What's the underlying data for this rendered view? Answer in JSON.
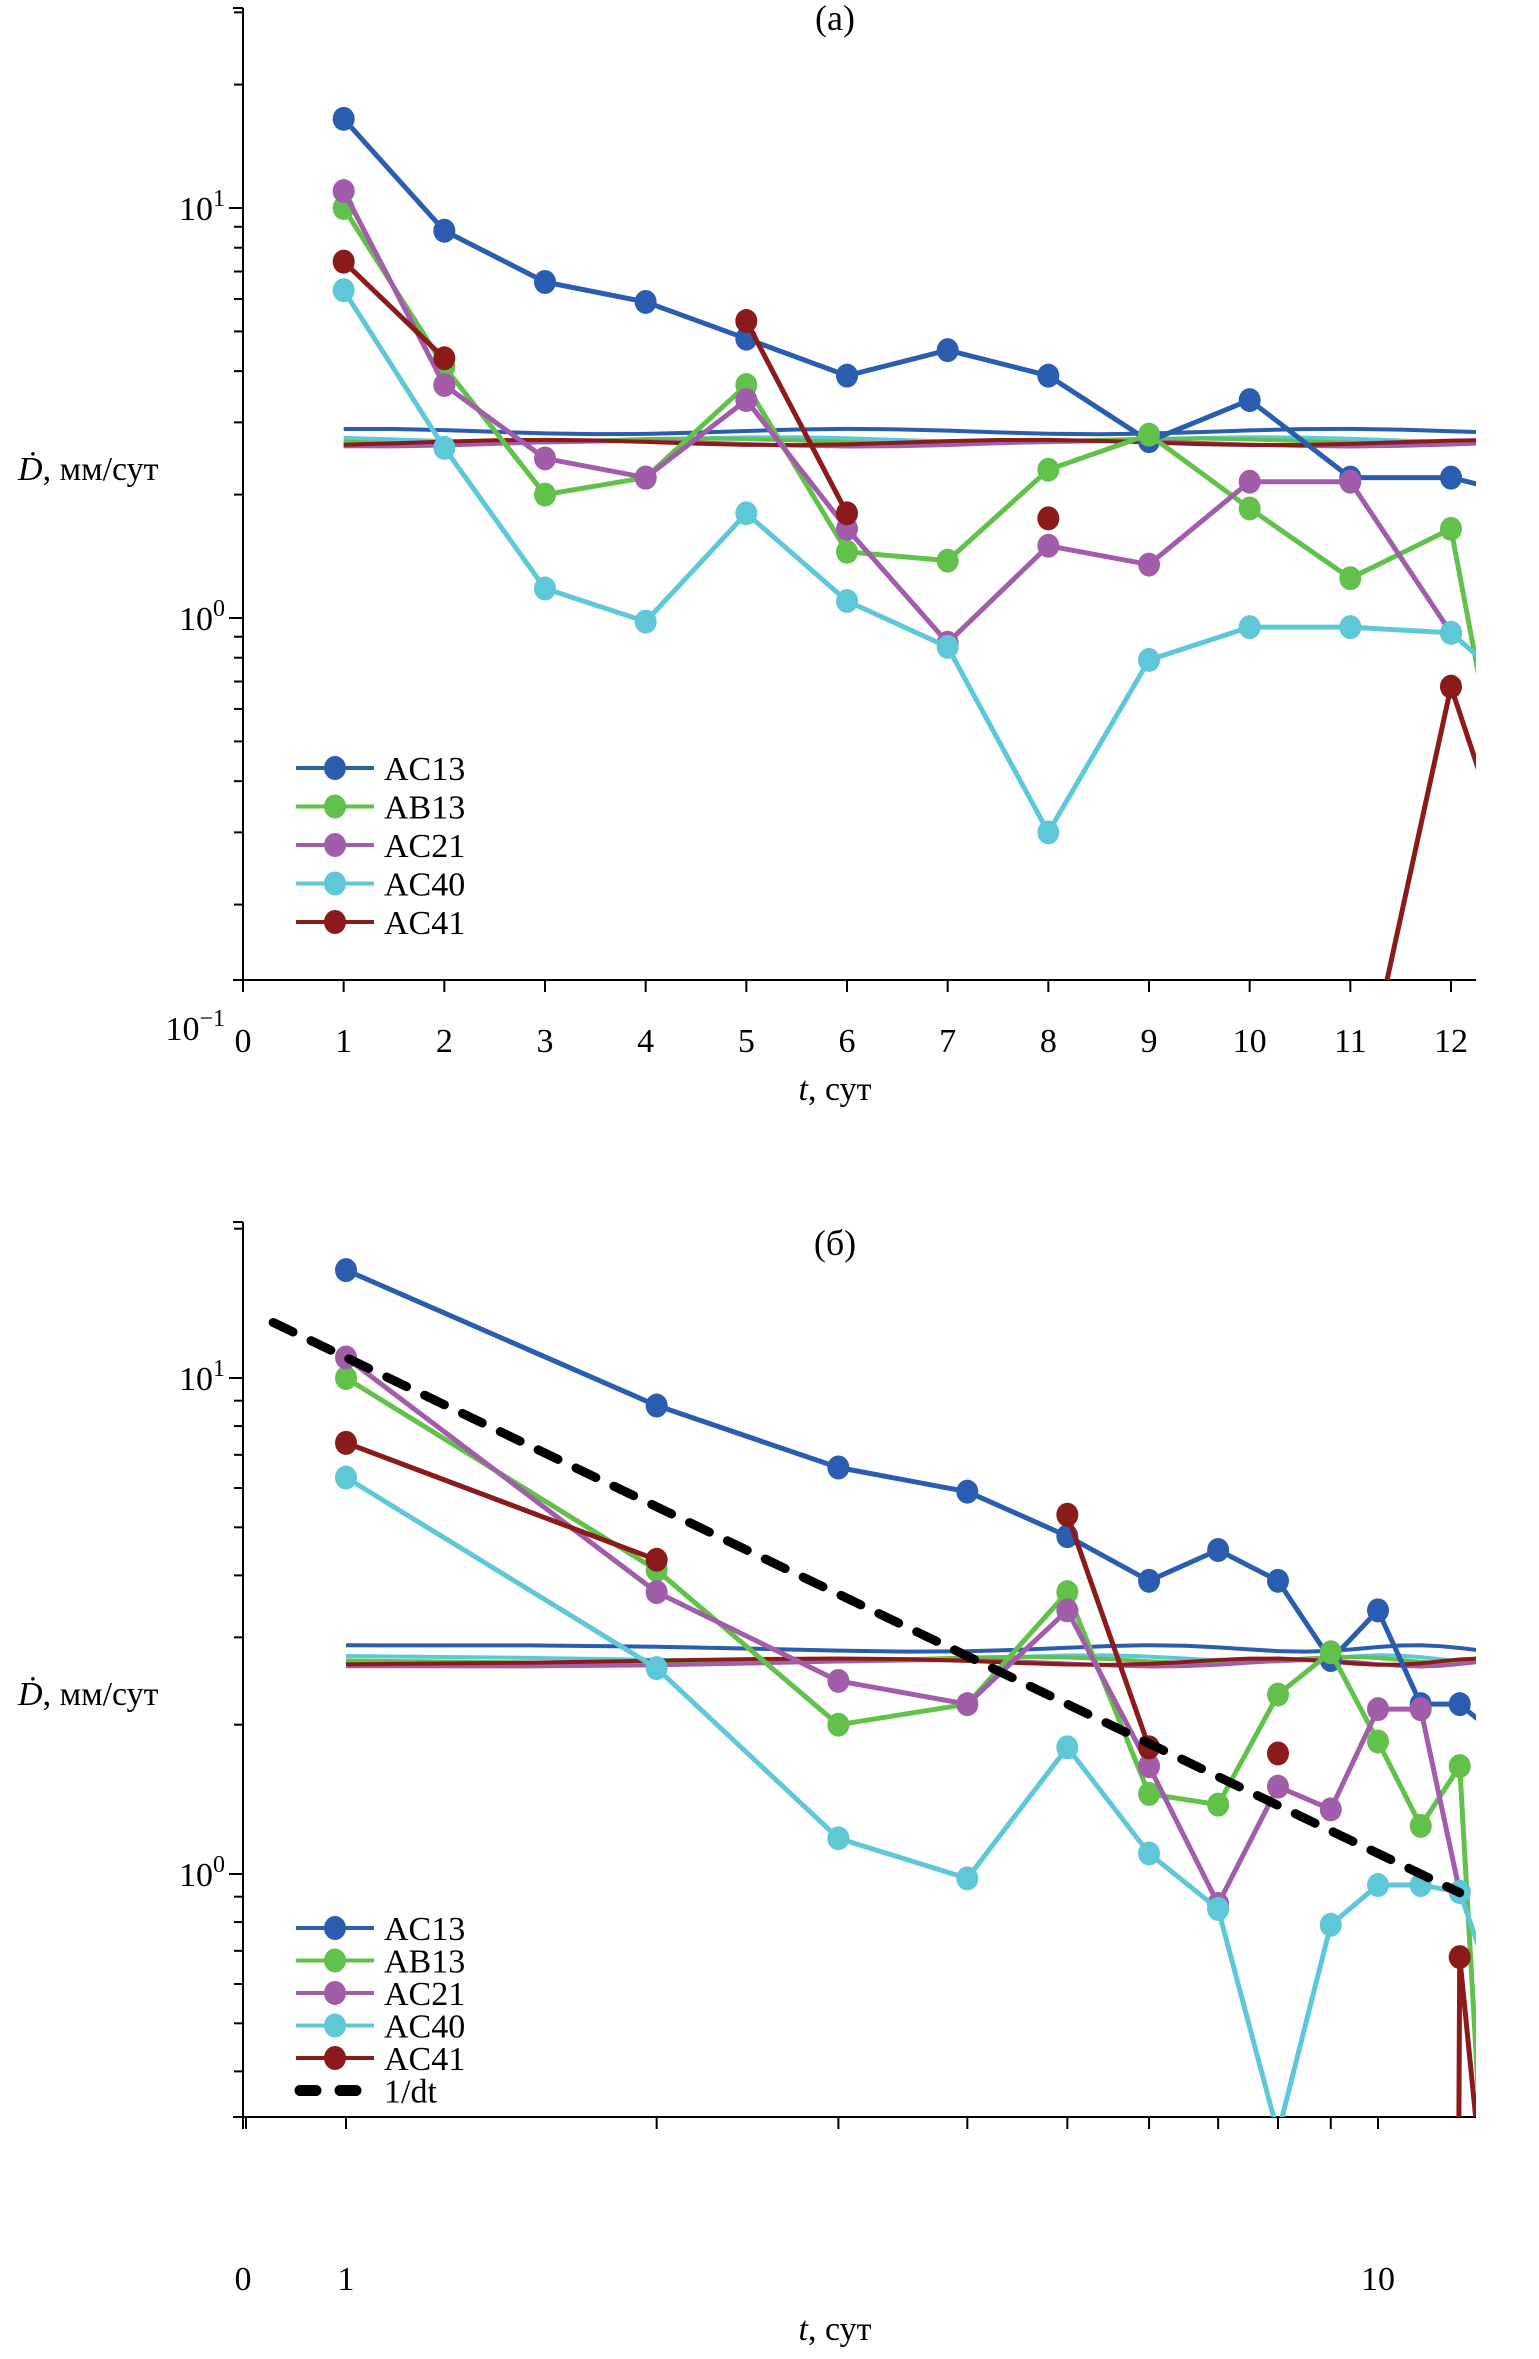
{
  "chart_data": [
    {
      "type": "line",
      "panel_label": "(а)",
      "xscale": "linear",
      "yscale": "log",
      "xlabel": "t, сут",
      "ylabel": "Ḋ, мм/сут",
      "xlim": [
        0,
        12.5
      ],
      "ylim": [
        0.1,
        30
      ],
      "xticks": [
        "0",
        "1",
        "2",
        "3",
        "4",
        "5",
        "6",
        "7",
        "8",
        "9",
        "10",
        "11",
        "12"
      ],
      "yticks": [
        {
          "value": 10,
          "label": "10^1"
        },
        {
          "value": 1,
          "label": "10^0"
        },
        {
          "value": 0.1,
          "label": "10^−1"
        }
      ],
      "legend": {
        "position": "bottom-left",
        "entries": [
          "AC13",
          "AB13",
          "AC21",
          "AC40",
          "AC41"
        ]
      },
      "x": [
        1,
        2,
        3,
        4,
        5,
        6,
        7,
        8,
        9,
        10,
        11,
        12
      ],
      "series": [
        {
          "name": "AC13",
          "color": "#2a5cb0",
          "values": [
            16.5,
            8.8,
            6.6,
            5.9,
            4.8,
            3.9,
            4.5,
            3.9,
            2.7,
            3.4,
            2.2,
            2.2
          ],
          "tail": 2.05
        },
        {
          "name": "AB13",
          "color": "#62c14a",
          "values": [
            10.0,
            4.1,
            2.0,
            2.2,
            3.7,
            1.45,
            1.38,
            2.3,
            2.8,
            1.85,
            1.25,
            1.65
          ],
          "tail": 0.37
        },
        {
          "name": "AC21",
          "color": "#a15daa",
          "values": [
            11.0,
            3.7,
            2.45,
            2.2,
            3.4,
            1.65,
            0.87,
            1.5,
            1.35,
            2.15,
            2.15,
            0.92
          ],
          "tail": null
        },
        {
          "name": "AC40",
          "color": "#5ec8d8",
          "values": [
            6.3,
            2.6,
            1.18,
            0.98,
            1.8,
            1.1,
            0.85,
            0.3,
            0.79,
            0.95,
            0.95,
            0.92
          ],
          "tail": 0.72
        },
        {
          "name": "AC41",
          "color": "#8b1a1a",
          "values": [
            7.4,
            4.3,
            null,
            null,
            5.3,
            1.8,
            null,
            1.75,
            null,
            null,
            null,
            0.68
          ],
          "tail": 0.29,
          "pre_min": 0.1
        }
      ],
      "reference_lines": [
        {
          "name": "AC13-mean",
          "color": "#2a5cb0",
          "value": 2.85
        },
        {
          "name": "AC40-mean",
          "color": "#5ec8d8",
          "value": 2.72
        },
        {
          "name": "AB13-mean",
          "color": "#62c14a",
          "value": 2.7
        },
        {
          "name": "AC21-mean",
          "color": "#a15daa",
          "value": 2.66
        },
        {
          "name": "AC41-mean",
          "color": "#8b1a1a",
          "value": 2.68
        }
      ]
    },
    {
      "type": "line",
      "panel_label": "(б)",
      "xscale": "log",
      "yscale": "log",
      "xlabel": "t, сут",
      "ylabel": "Ḋ, мм/сут",
      "xlim": [
        0.78,
        12.5
      ],
      "ylim": [
        0.2,
        20
      ],
      "xticks": [
        {
          "value": 1,
          "label": "1"
        },
        {
          "value": 10,
          "label": "10"
        }
      ],
      "x_origin_label": "0",
      "yticks": [
        {
          "value": 10,
          "label": "10^1"
        },
        {
          "value": 1,
          "label": "10^0"
        }
      ],
      "legend": {
        "position": "bottom-left",
        "entries": [
          "AC13",
          "AB13",
          "AC21",
          "AC40",
          "AC41",
          "1/dt"
        ]
      },
      "x": [
        1,
        2,
        3,
        4,
        5,
        6,
        7,
        8,
        9,
        10,
        11,
        12
      ],
      "series": [
        {
          "name": "AC13",
          "color": "#2a5cb0",
          "values": [
            16.5,
            8.8,
            6.6,
            5.9,
            4.8,
            3.9,
            4.5,
            3.9,
            2.7,
            3.4,
            2.2,
            2.2
          ],
          "tail": 2.05
        },
        {
          "name": "AB13",
          "color": "#62c14a",
          "values": [
            10.0,
            4.1,
            2.0,
            2.2,
            3.7,
            1.45,
            1.38,
            2.3,
            2.8,
            1.85,
            1.25,
            1.65
          ],
          "tail": 0.37
        },
        {
          "name": "AC21",
          "color": "#a15daa",
          "values": [
            11.0,
            3.7,
            2.45,
            2.2,
            3.4,
            1.65,
            0.87,
            1.5,
            1.35,
            2.15,
            2.15,
            0.92
          ],
          "tail": null
        },
        {
          "name": "AC40",
          "color": "#5ec8d8",
          "values": [
            6.3,
            2.6,
            1.18,
            0.98,
            1.8,
            1.1,
            0.85,
            0.3,
            0.79,
            0.95,
            0.95,
            0.92
          ],
          "tail": 0.72
        },
        {
          "name": "AC41",
          "color": "#8b1a1a",
          "values": [
            7.4,
            4.3,
            null,
            null,
            5.3,
            1.8,
            null,
            1.75,
            null,
            null,
            null,
            0.68
          ],
          "tail": 0.29,
          "pre_min": 0.2
        },
        {
          "name": "1/dt",
          "color": "#000000",
          "dashed": true,
          "x_range": [
            0.85,
            12
          ],
          "formula": "11/t"
        }
      ],
      "reference_lines": [
        {
          "name": "AC13-mean",
          "color": "#2a5cb0",
          "value": 2.85
        },
        {
          "name": "AC40-mean",
          "color": "#5ec8d8",
          "value": 2.72
        },
        {
          "name": "AB13-mean",
          "color": "#62c14a",
          "value": 2.7
        },
        {
          "name": "AC21-mean",
          "color": "#a15daa",
          "value": 2.66
        },
        {
          "name": "AC41-mean",
          "color": "#8b1a1a",
          "value": 2.68
        }
      ]
    }
  ]
}
